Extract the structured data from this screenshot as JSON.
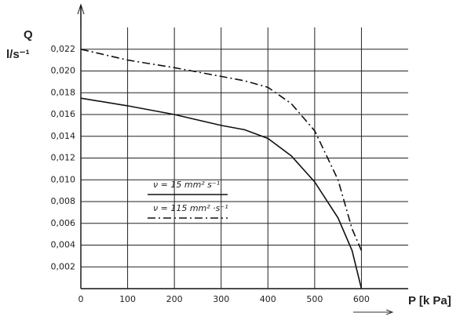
{
  "chart_data": {
    "type": "line",
    "y_label_top": "Q",
    "y_label_unit": "l/s⁻¹",
    "x_label": "P [k Pa]",
    "x": [
      0,
      100,
      200,
      300,
      350,
      400,
      450,
      500,
      550,
      580,
      600
    ],
    "series": [
      {
        "name": "ν = 15 mm² s⁻¹",
        "color": "#111",
        "dash": "solid",
        "values": [
          0.0175,
          0.0168,
          0.016,
          0.015,
          0.0146,
          0.0138,
          0.0122,
          0.0098,
          0.0065,
          0.0035,
          0.0
        ]
      },
      {
        "name": "ν = 115 mm² ·s⁻¹",
        "color": "#111",
        "dash": "dashdot",
        "values": [
          0.022,
          0.021,
          0.0203,
          0.0195,
          0.0191,
          0.0185,
          0.017,
          0.0145,
          0.01,
          0.0055,
          0.0035
        ]
      }
    ],
    "xlim": [
      0,
      700
    ],
    "xticks": [
      0,
      100,
      200,
      300,
      400,
      500,
      600
    ],
    "ylim": [
      0,
      0.024
    ],
    "yticks": [
      {
        "value": 0.002,
        "label": "0,002"
      },
      {
        "value": 0.004,
        "label": "0,004"
      },
      {
        "value": 0.006,
        "label": "0,006"
      },
      {
        "value": 0.008,
        "label": "0,008"
      },
      {
        "value": 0.01,
        "label": "0,010"
      },
      {
        "value": 0.012,
        "label": "0,012"
      },
      {
        "value": 0.014,
        "label": "0,014"
      },
      {
        "value": 0.016,
        "label": "0,016"
      },
      {
        "value": 0.018,
        "label": "0,018"
      },
      {
        "value": 0.02,
        "label": "0,020"
      },
      {
        "value": 0.022,
        "label": "0,022"
      }
    ],
    "grid": true
  }
}
